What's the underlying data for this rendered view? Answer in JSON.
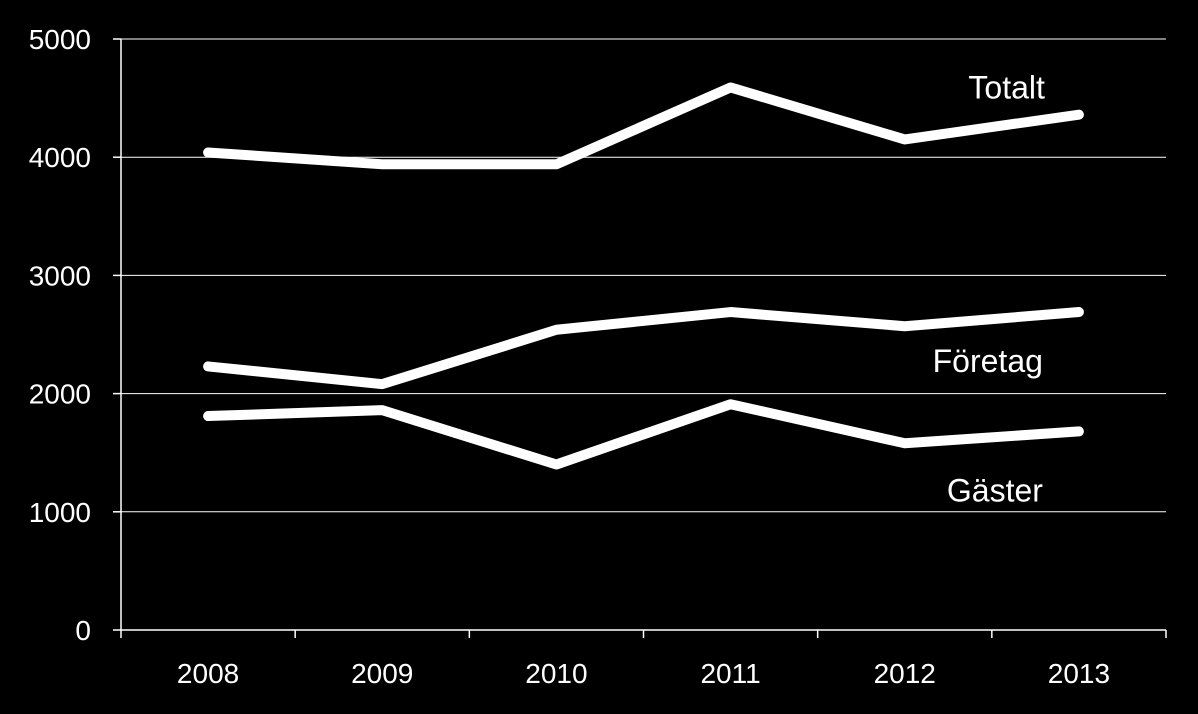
{
  "chart_data": {
    "type": "line",
    "title": "",
    "xlabel": "",
    "ylabel": "",
    "categories": [
      "2008",
      "2009",
      "2010",
      "2011",
      "2012",
      "2013"
    ],
    "ylim": [
      0,
      5000
    ],
    "yticks": [
      "0",
      "1000",
      "2000",
      "3000",
      "4000",
      "5000"
    ],
    "grid": true,
    "legend": "inline labels at right end of each line",
    "series": [
      {
        "name": "Totalt",
        "values": [
          4040,
          3940,
          3940,
          4590,
          4150,
          4360
        ]
      },
      {
        "name": "Företag",
        "values": [
          2230,
          2080,
          2540,
          2690,
          2570,
          2690
        ]
      },
      {
        "name": "Gäster",
        "values": [
          1810,
          1860,
          1400,
          1910,
          1580,
          1680
        ]
      }
    ],
    "colors": {
      "background": "#000000",
      "lines": "#ffffff",
      "text": "#ffffff"
    }
  }
}
